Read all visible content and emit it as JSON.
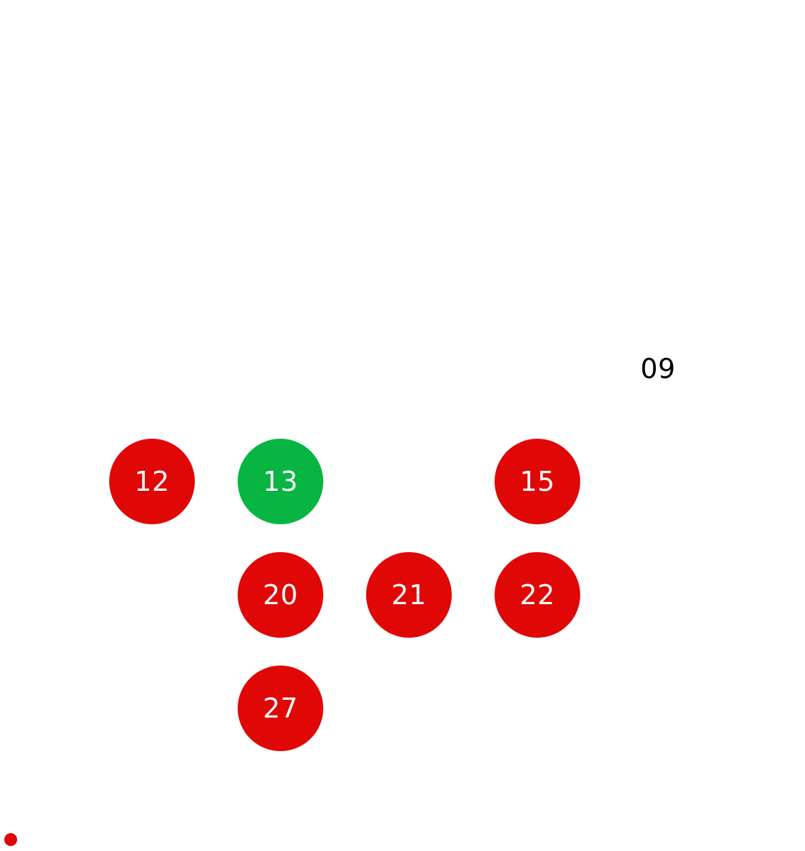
{
  "colors": {
    "background": "#ffffff",
    "marked_red": "#e00707",
    "selected_green": "#08b542",
    "plain_text": "#000000",
    "marked_text": "#ffffff"
  },
  "days": {
    "d09": {
      "label": "09",
      "state": "plain"
    },
    "d12": {
      "label": "12",
      "state": "marked"
    },
    "d13": {
      "label": "13",
      "state": "selected"
    },
    "d15": {
      "label": "15",
      "state": "marked"
    },
    "d20": {
      "label": "20",
      "state": "marked"
    },
    "d21": {
      "label": "21",
      "state": "marked"
    },
    "d22": {
      "label": "22",
      "state": "marked"
    },
    "d27": {
      "label": "27",
      "state": "marked"
    }
  },
  "indicator": {
    "icon": "red-dot-icon",
    "color": "#e00707"
  }
}
